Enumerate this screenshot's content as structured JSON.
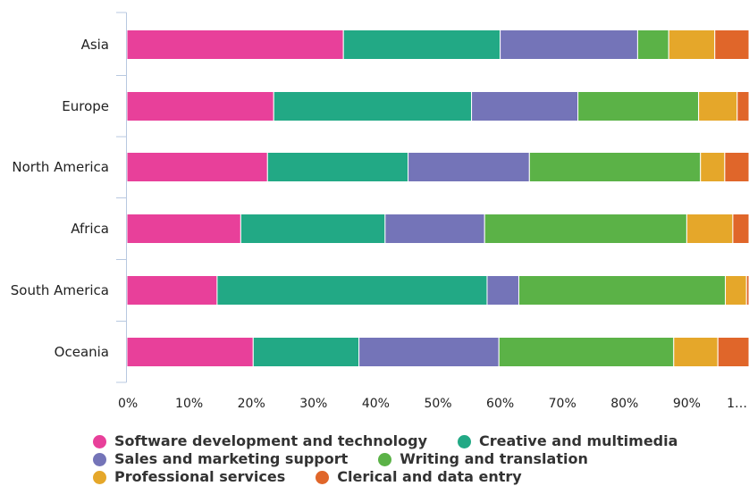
{
  "chart_data": {
    "type": "bar",
    "orientation": "horizontal",
    "stacked": true,
    "normalized": true,
    "categories": [
      "Asia",
      "Europe",
      "North America",
      "Africa",
      "South America",
      "Oceania"
    ],
    "series": [
      {
        "name": "Software development and technology",
        "color": "#e8409a",
        "values": [
          34.8,
          23.6,
          22.6,
          18.3,
          14.5,
          20.3
        ]
      },
      {
        "name": "Creative and multimedia",
        "color": "#22a985",
        "values": [
          25.2,
          31.8,
          22.6,
          23.2,
          43.4,
          17.0
        ]
      },
      {
        "name": "Sales and marketing support",
        "color": "#7474b8",
        "values": [
          22.1,
          17.1,
          19.5,
          16.0,
          5.1,
          22.5
        ]
      },
      {
        "name": "Writing and translation",
        "color": "#5bb247",
        "values": [
          5.0,
          19.4,
          27.5,
          32.5,
          33.2,
          28.1
        ]
      },
      {
        "name": "Professional services",
        "color": "#e5a72a",
        "values": [
          7.4,
          6.2,
          3.9,
          7.4,
          3.4,
          7.1
        ]
      },
      {
        "name": "Clerical and data entry",
        "color": "#e0662a",
        "values": [
          5.5,
          1.9,
          3.9,
          2.6,
          0.4,
          5.0
        ]
      }
    ],
    "xlim": [
      0,
      100
    ],
    "xticks": [
      "0%",
      "10%",
      "20%",
      "30%",
      "40%",
      "50%",
      "60%",
      "70%",
      "80%",
      "90%",
      "1…"
    ],
    "legend_position": "bottom",
    "grid": false
  }
}
